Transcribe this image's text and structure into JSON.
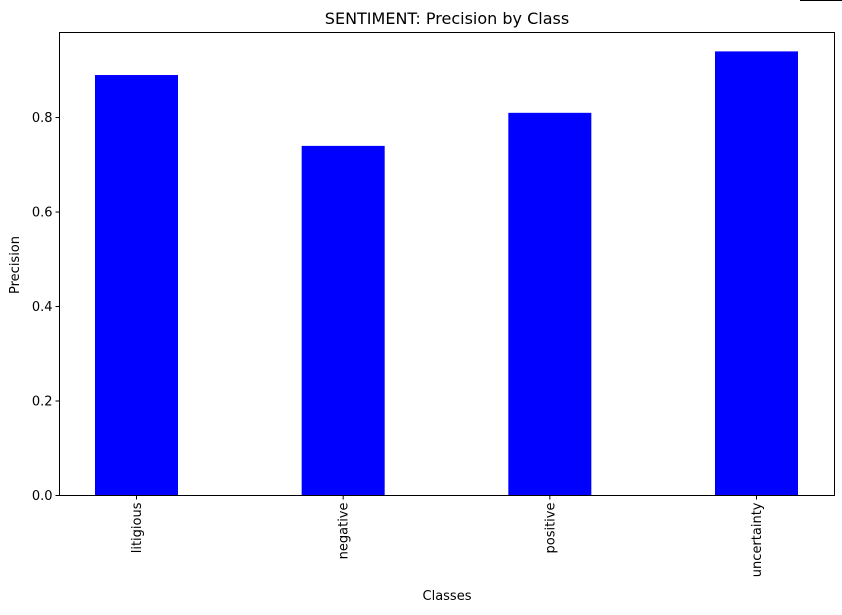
{
  "chart_data": {
    "type": "bar",
    "title": "SENTIMENT: Precision by Class",
    "xlabel": "Classes",
    "ylabel": "Precision",
    "categories": [
      "litigious",
      "negative",
      "positive",
      "uncertainty"
    ],
    "values": [
      0.89,
      0.74,
      0.81,
      0.94
    ],
    "ylim": [
      0,
      0.98
    ],
    "yticks": [
      "0.0",
      "0.2",
      "0.4",
      "0.6",
      "0.8"
    ],
    "grid": false,
    "bar_color": "#0000ff",
    "x_tick_rotation": "vertical"
  }
}
